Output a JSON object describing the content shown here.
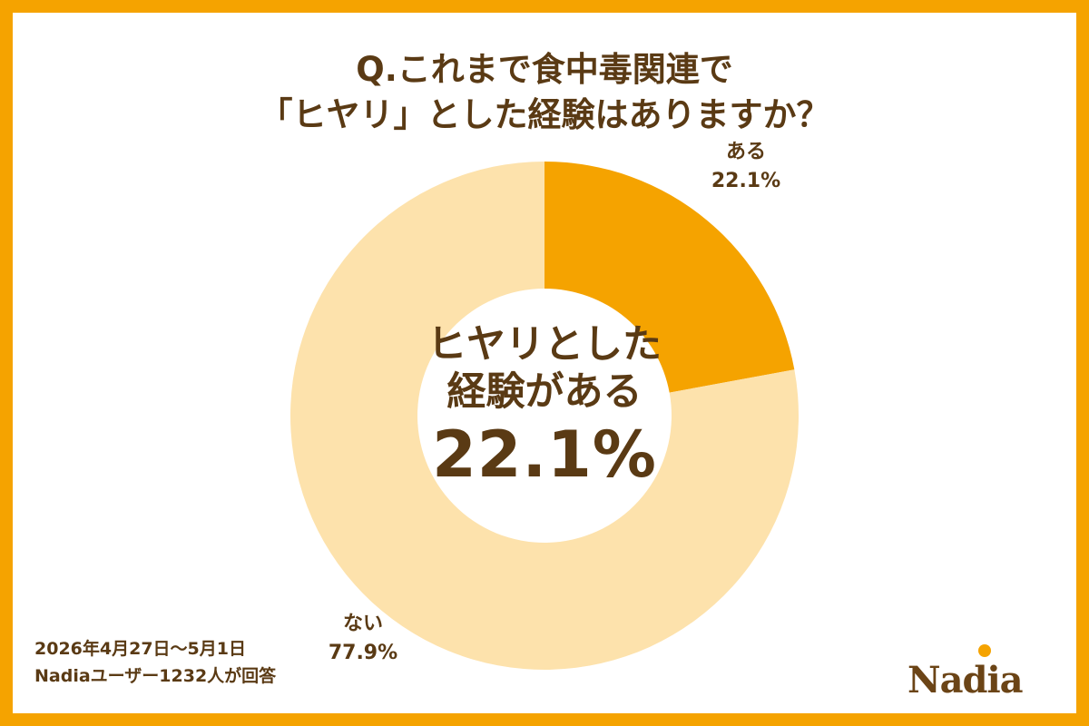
{
  "title": {
    "line1": "Q.これまで食中毒関連で",
    "line2": "「ヒヤリ」とした経験はありますか？"
  },
  "center_text": {
    "line1": "ヒヤリとした",
    "line2": "経験がある",
    "value": "22.1%"
  },
  "footnote": {
    "date": "2026年4月27日～5月1日",
    "respondents": "Nadiaユーザー1232人が回答"
  },
  "logo": {
    "text": "Nadia"
  },
  "colors": {
    "frame": "#f5a300",
    "primary": "#f5a300",
    "secondary": "#fde2ac",
    "text": "#5a3a14"
  },
  "chart_data": {
    "type": "pie",
    "donut": true,
    "slices": [
      {
        "label": "ある",
        "value": 22.1,
        "value_label": "22.1%",
        "color": "#f5a300"
      },
      {
        "label": "ない",
        "value": 77.9,
        "value_label": "77.9%",
        "color": "#fde2ac"
      }
    ],
    "start_angle": "12 o'clock",
    "direction": "clockwise"
  }
}
